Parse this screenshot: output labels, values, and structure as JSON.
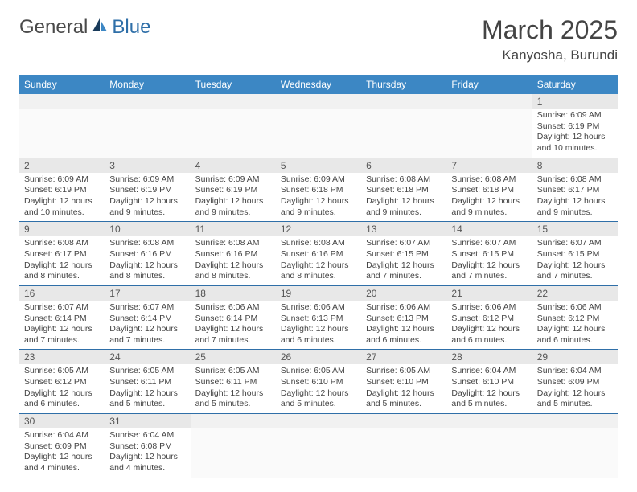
{
  "logo": {
    "text1": "General",
    "text2": "Blue"
  },
  "title": "March 2025",
  "location": "Kanyosha, Burundi",
  "colors": {
    "header_bg": "#3c87c4",
    "header_text": "#ffffff",
    "row_border": "#2f6fa8",
    "daynum_bg": "#e8e8e8",
    "text": "#444444"
  },
  "days_of_week": [
    "Sunday",
    "Monday",
    "Tuesday",
    "Wednesday",
    "Thursday",
    "Friday",
    "Saturday"
  ],
  "weeks": [
    [
      null,
      null,
      null,
      null,
      null,
      null,
      {
        "n": "1",
        "sunrise": "Sunrise: 6:09 AM",
        "sunset": "Sunset: 6:19 PM",
        "daylight": "Daylight: 12 hours and 10 minutes."
      }
    ],
    [
      {
        "n": "2",
        "sunrise": "Sunrise: 6:09 AM",
        "sunset": "Sunset: 6:19 PM",
        "daylight": "Daylight: 12 hours and 10 minutes."
      },
      {
        "n": "3",
        "sunrise": "Sunrise: 6:09 AM",
        "sunset": "Sunset: 6:19 PM",
        "daylight": "Daylight: 12 hours and 9 minutes."
      },
      {
        "n": "4",
        "sunrise": "Sunrise: 6:09 AM",
        "sunset": "Sunset: 6:19 PM",
        "daylight": "Daylight: 12 hours and 9 minutes."
      },
      {
        "n": "5",
        "sunrise": "Sunrise: 6:09 AM",
        "sunset": "Sunset: 6:18 PM",
        "daylight": "Daylight: 12 hours and 9 minutes."
      },
      {
        "n": "6",
        "sunrise": "Sunrise: 6:08 AM",
        "sunset": "Sunset: 6:18 PM",
        "daylight": "Daylight: 12 hours and 9 minutes."
      },
      {
        "n": "7",
        "sunrise": "Sunrise: 6:08 AM",
        "sunset": "Sunset: 6:18 PM",
        "daylight": "Daylight: 12 hours and 9 minutes."
      },
      {
        "n": "8",
        "sunrise": "Sunrise: 6:08 AM",
        "sunset": "Sunset: 6:17 PM",
        "daylight": "Daylight: 12 hours and 9 minutes."
      }
    ],
    [
      {
        "n": "9",
        "sunrise": "Sunrise: 6:08 AM",
        "sunset": "Sunset: 6:17 PM",
        "daylight": "Daylight: 12 hours and 8 minutes."
      },
      {
        "n": "10",
        "sunrise": "Sunrise: 6:08 AM",
        "sunset": "Sunset: 6:16 PM",
        "daylight": "Daylight: 12 hours and 8 minutes."
      },
      {
        "n": "11",
        "sunrise": "Sunrise: 6:08 AM",
        "sunset": "Sunset: 6:16 PM",
        "daylight": "Daylight: 12 hours and 8 minutes."
      },
      {
        "n": "12",
        "sunrise": "Sunrise: 6:08 AM",
        "sunset": "Sunset: 6:16 PM",
        "daylight": "Daylight: 12 hours and 8 minutes."
      },
      {
        "n": "13",
        "sunrise": "Sunrise: 6:07 AM",
        "sunset": "Sunset: 6:15 PM",
        "daylight": "Daylight: 12 hours and 7 minutes."
      },
      {
        "n": "14",
        "sunrise": "Sunrise: 6:07 AM",
        "sunset": "Sunset: 6:15 PM",
        "daylight": "Daylight: 12 hours and 7 minutes."
      },
      {
        "n": "15",
        "sunrise": "Sunrise: 6:07 AM",
        "sunset": "Sunset: 6:15 PM",
        "daylight": "Daylight: 12 hours and 7 minutes."
      }
    ],
    [
      {
        "n": "16",
        "sunrise": "Sunrise: 6:07 AM",
        "sunset": "Sunset: 6:14 PM",
        "daylight": "Daylight: 12 hours and 7 minutes."
      },
      {
        "n": "17",
        "sunrise": "Sunrise: 6:07 AM",
        "sunset": "Sunset: 6:14 PM",
        "daylight": "Daylight: 12 hours and 7 minutes."
      },
      {
        "n": "18",
        "sunrise": "Sunrise: 6:06 AM",
        "sunset": "Sunset: 6:14 PM",
        "daylight": "Daylight: 12 hours and 7 minutes."
      },
      {
        "n": "19",
        "sunrise": "Sunrise: 6:06 AM",
        "sunset": "Sunset: 6:13 PM",
        "daylight": "Daylight: 12 hours and 6 minutes."
      },
      {
        "n": "20",
        "sunrise": "Sunrise: 6:06 AM",
        "sunset": "Sunset: 6:13 PM",
        "daylight": "Daylight: 12 hours and 6 minutes."
      },
      {
        "n": "21",
        "sunrise": "Sunrise: 6:06 AM",
        "sunset": "Sunset: 6:12 PM",
        "daylight": "Daylight: 12 hours and 6 minutes."
      },
      {
        "n": "22",
        "sunrise": "Sunrise: 6:06 AM",
        "sunset": "Sunset: 6:12 PM",
        "daylight": "Daylight: 12 hours and 6 minutes."
      }
    ],
    [
      {
        "n": "23",
        "sunrise": "Sunrise: 6:05 AM",
        "sunset": "Sunset: 6:12 PM",
        "daylight": "Daylight: 12 hours and 6 minutes."
      },
      {
        "n": "24",
        "sunrise": "Sunrise: 6:05 AM",
        "sunset": "Sunset: 6:11 PM",
        "daylight": "Daylight: 12 hours and 5 minutes."
      },
      {
        "n": "25",
        "sunrise": "Sunrise: 6:05 AM",
        "sunset": "Sunset: 6:11 PM",
        "daylight": "Daylight: 12 hours and 5 minutes."
      },
      {
        "n": "26",
        "sunrise": "Sunrise: 6:05 AM",
        "sunset": "Sunset: 6:10 PM",
        "daylight": "Daylight: 12 hours and 5 minutes."
      },
      {
        "n": "27",
        "sunrise": "Sunrise: 6:05 AM",
        "sunset": "Sunset: 6:10 PM",
        "daylight": "Daylight: 12 hours and 5 minutes."
      },
      {
        "n": "28",
        "sunrise": "Sunrise: 6:04 AM",
        "sunset": "Sunset: 6:10 PM",
        "daylight": "Daylight: 12 hours and 5 minutes."
      },
      {
        "n": "29",
        "sunrise": "Sunrise: 6:04 AM",
        "sunset": "Sunset: 6:09 PM",
        "daylight": "Daylight: 12 hours and 5 minutes."
      }
    ],
    [
      {
        "n": "30",
        "sunrise": "Sunrise: 6:04 AM",
        "sunset": "Sunset: 6:09 PM",
        "daylight": "Daylight: 12 hours and 4 minutes."
      },
      {
        "n": "31",
        "sunrise": "Sunrise: 6:04 AM",
        "sunset": "Sunset: 6:08 PM",
        "daylight": "Daylight: 12 hours and 4 minutes."
      },
      null,
      null,
      null,
      null,
      null
    ]
  ]
}
